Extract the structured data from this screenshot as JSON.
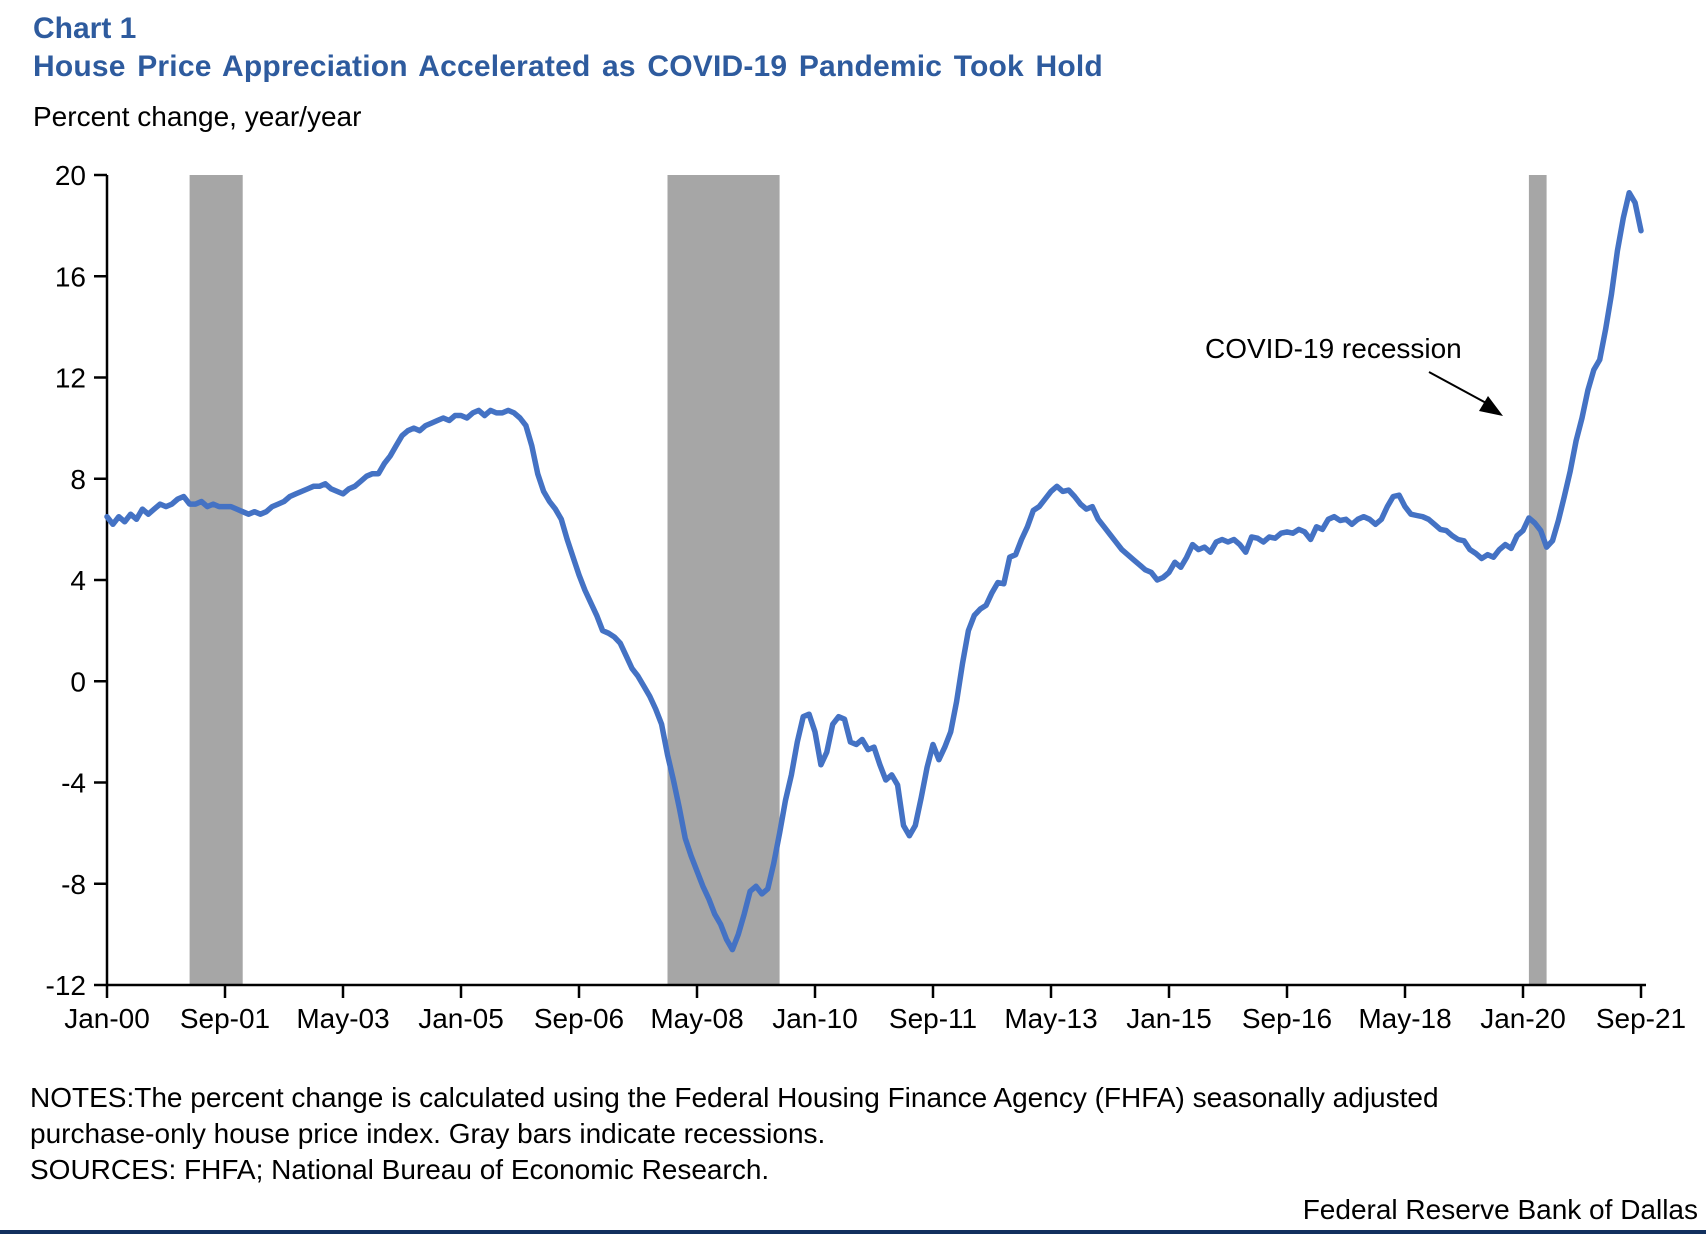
{
  "header": {
    "chart_label": "Chart 1",
    "title": "House Price Appreciation Accelerated as COVID-19 Pandemic Took Hold",
    "axis_unit_label": "Percent change, year/year"
  },
  "notes": {
    "notes_text": "NOTES:The percent change is calculated using the Federal Housing Finance Agency (FHFA) seasonally adjusted purchase-only house price index. Gray bars indicate recessions.",
    "sources_text": "SOURCES: FHFA; National Bureau of Economic Research."
  },
  "footer": {
    "org": "Federal Reserve Bank of Dallas"
  },
  "chart_data": {
    "type": "line",
    "title": "House Price Appreciation Accelerated as COVID-19 Pandemic Took Hold",
    "ylabel": "Percent change, year/year",
    "xlabel": "",
    "ylim": [
      -12,
      20
    ],
    "yticks": [
      20,
      16,
      12,
      8,
      4,
      0,
      -4,
      -8,
      -12
    ],
    "xtick_labels": [
      "Jan-00",
      "Sep-01",
      "May-03",
      "Jan-05",
      "Sep-06",
      "May-08",
      "Jan-10",
      "Sep-11",
      "May-13",
      "Jan-15",
      "Sep-16",
      "May-18",
      "Jan-20",
      "Sep-21"
    ],
    "xtick_interval_months": 20,
    "x_start": "2000-01",
    "x_end": "2021-09",
    "grid": false,
    "legend": "none",
    "line_color": "#4472c4",
    "band_color": "#a6a6a6",
    "annotation": {
      "text": "COVID-19 recession"
    },
    "recession_bands": [
      {
        "start": "2001-03",
        "end": "2001-11"
      },
      {
        "start": "2007-12",
        "end": "2009-06"
      },
      {
        "start": "2020-02",
        "end": "2020-04"
      }
    ],
    "series": [
      {
        "name": "FHFA purchase-only house price index, percent change year/year",
        "frequency": "monthly",
        "values": [
          6.5,
          6.2,
          6.5,
          6.3,
          6.6,
          6.4,
          6.8,
          6.6,
          6.8,
          7.0,
          6.9,
          7.0,
          7.2,
          7.3,
          7.0,
          7.0,
          7.1,
          6.9,
          7.0,
          6.9,
          6.9,
          6.9,
          6.8,
          6.7,
          6.6,
          6.7,
          6.6,
          6.7,
          6.9,
          7.0,
          7.1,
          7.3,
          7.4,
          7.5,
          7.6,
          7.7,
          7.7,
          7.8,
          7.6,
          7.5,
          7.4,
          7.6,
          7.7,
          7.9,
          8.1,
          8.2,
          8.2,
          8.6,
          8.9,
          9.3,
          9.7,
          9.9,
          10.0,
          9.9,
          10.1,
          10.2,
          10.3,
          10.4,
          10.3,
          10.5,
          10.5,
          10.4,
          10.6,
          10.7,
          10.5,
          10.7,
          10.6,
          10.6,
          10.7,
          10.6,
          10.4,
          10.1,
          9.3,
          8.2,
          7.5,
          7.1,
          6.8,
          6.4,
          5.6,
          4.9,
          4.2,
          3.6,
          3.1,
          2.6,
          2.0,
          1.9,
          1.75,
          1.5,
          1.0,
          0.5,
          0.2,
          -0.2,
          -0.6,
          -1.1,
          -1.7,
          -2.9,
          -3.9,
          -5.0,
          -6.2,
          -6.9,
          -7.5,
          -8.1,
          -8.6,
          -9.2,
          -9.6,
          -10.2,
          -10.6,
          -10.0,
          -9.2,
          -8.3,
          -8.1,
          -8.4,
          -8.2,
          -7.2,
          -6.0,
          -4.7,
          -3.7,
          -2.4,
          -1.4,
          -1.3,
          -2.0,
          -3.3,
          -2.8,
          -1.7,
          -1.4,
          -1.5,
          -2.4,
          -2.5,
          -2.3,
          -2.7,
          -2.6,
          -3.3,
          -3.9,
          -3.7,
          -4.1,
          -5.7,
          -6.1,
          -5.7,
          -4.6,
          -3.4,
          -2.5,
          -3.1,
          -2.6,
          -2.0,
          -0.8,
          0.7,
          2.0,
          2.6,
          2.85,
          3.0,
          3.5,
          3.9,
          3.85,
          4.9,
          5.0,
          5.6,
          6.1,
          6.75,
          6.9,
          7.2,
          7.5,
          7.7,
          7.5,
          7.55,
          7.3,
          7.0,
          6.8,
          6.9,
          6.4,
          6.1,
          5.8,
          5.5,
          5.2,
          5.0,
          4.8,
          4.6,
          4.4,
          4.3,
          4.0,
          4.1,
          4.3,
          4.7,
          4.5,
          4.9,
          5.4,
          5.2,
          5.3,
          5.1,
          5.5,
          5.6,
          5.5,
          5.6,
          5.4,
          5.1,
          5.7,
          5.65,
          5.5,
          5.7,
          5.65,
          5.85,
          5.9,
          5.85,
          6.0,
          5.9,
          5.6,
          6.1,
          6.0,
          6.4,
          6.5,
          6.35,
          6.4,
          6.2,
          6.4,
          6.5,
          6.4,
          6.2,
          6.4,
          6.9,
          7.3,
          7.35,
          6.9,
          6.6,
          6.55,
          6.5,
          6.4,
          6.2,
          6.0,
          5.95,
          5.75,
          5.6,
          5.55,
          5.2,
          5.05,
          4.85,
          5.0,
          4.9,
          5.2,
          5.4,
          5.25,
          5.75,
          5.95,
          6.45,
          6.25,
          5.95,
          5.3,
          5.55,
          6.35,
          7.3,
          8.3,
          9.5,
          10.4,
          11.5,
          12.3,
          12.7,
          13.9,
          15.3,
          17.0,
          18.3,
          19.3,
          18.9,
          17.8
        ]
      }
    ]
  }
}
